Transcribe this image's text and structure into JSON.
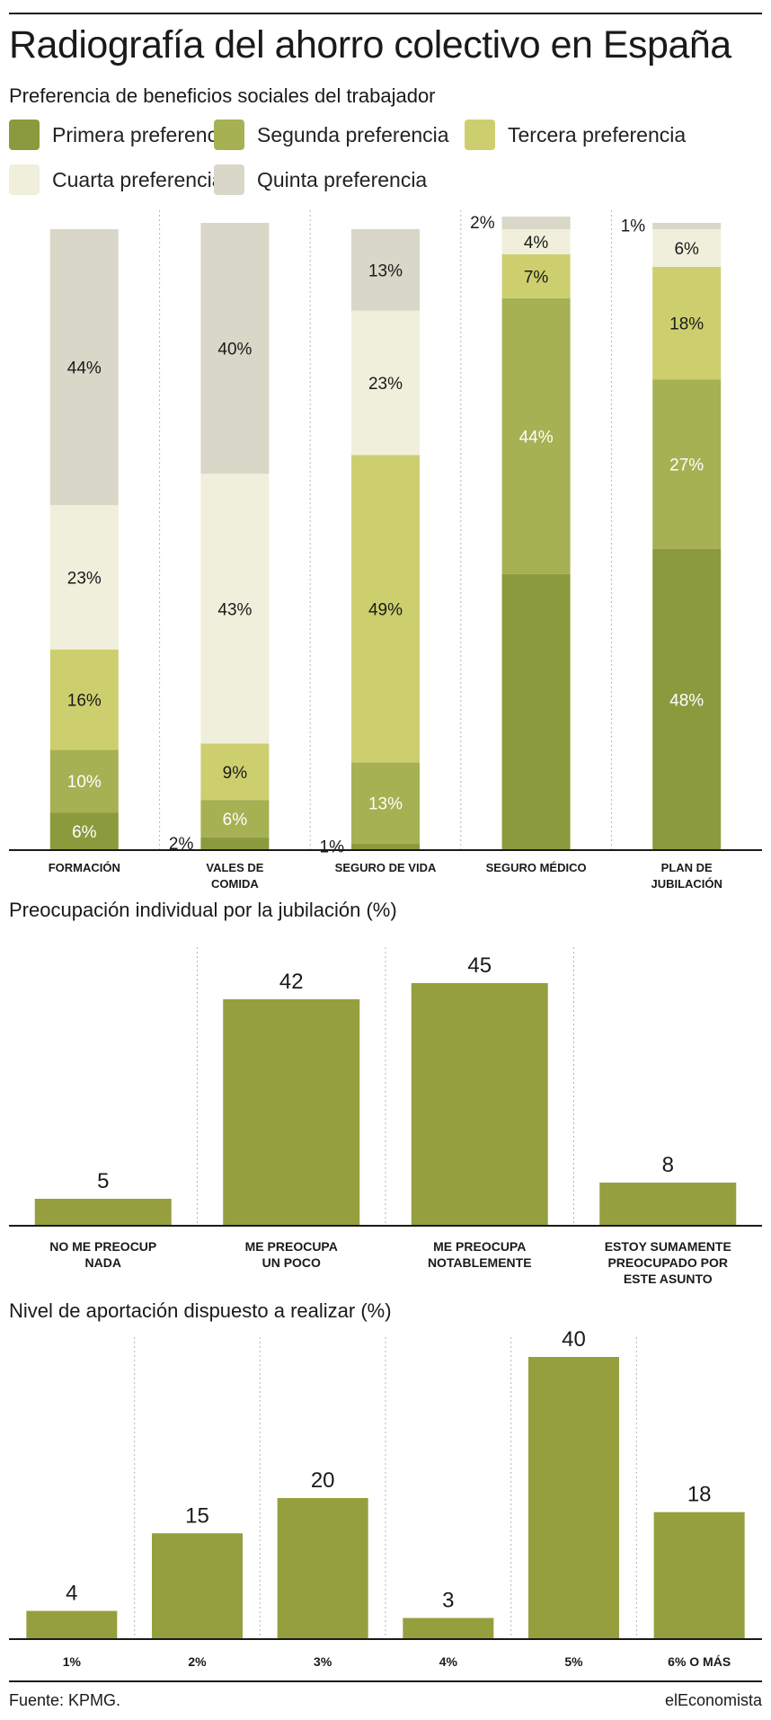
{
  "title": "Radiografía del ahorro colectivo en España",
  "source": "Fuente: KPMG.",
  "brand": "elEconomista",
  "colors": {
    "primera": "#8c9a3e",
    "segunda": "#a5b152",
    "tercera": "#cdcf6e",
    "cuarta": "#f0efdc",
    "quinta": "#d9d7c7",
    "bar": "#959f3e",
    "text": "#1a1a1a",
    "grid": "#b5b5b5"
  },
  "chart_data": [
    {
      "type": "bar",
      "stacked": true,
      "title": "Preferencia de beneficios sociales del trabajador",
      "categories": [
        "FORMACIÓN",
        "VALES DE COMIDA",
        "SEGURO DE VIDA",
        "SEGURO MÉDICO",
        "PLAN DE JUBILACIÓN"
      ],
      "ylim": [
        0,
        100
      ],
      "legend": "top",
      "grid": "vertical-dotted",
      "series": [
        {
          "name": "Primera preferencia",
          "color": "#8c9a3e",
          "values": [
            6,
            2,
            1,
            44,
            48
          ],
          "labels": [
            "6%",
            "2%",
            "1%",
            "",
            "48%"
          ]
        },
        {
          "name": "Segunda preferencia",
          "color": "#a5b152",
          "values": [
            10,
            6,
            13,
            44,
            27
          ],
          "labels": [
            "10%",
            "6%",
            "13%",
            "44%",
            "27%"
          ]
        },
        {
          "name": "Tercera preferencia",
          "color": "#cdcf6e",
          "values": [
            16,
            9,
            49,
            7,
            18
          ],
          "labels": [
            "16%",
            "9%",
            "49%",
            "7%",
            "18%"
          ]
        },
        {
          "name": "Cuarta preferencia",
          "color": "#f0efdc",
          "values": [
            23,
            43,
            23,
            4,
            6
          ],
          "labels": [
            "23%",
            "43%",
            "23%",
            "4%",
            "6%"
          ]
        },
        {
          "name": "Quinta preferencia",
          "color": "#d9d7c7",
          "values": [
            44,
            40,
            13,
            2,
            1
          ],
          "labels": [
            "44%",
            "40%",
            "13%",
            "2%",
            "1%"
          ]
        }
      ]
    },
    {
      "type": "bar",
      "title": "Preocupación individual por la jubilación (%)",
      "categories": [
        "NO ME PREOCUP NADA",
        "ME PREOCUPA UN POCO",
        "ME PREOCUPA NOTABLEMENTE",
        "ESTOY SUMAMENTE PREOCUPADO POR ESTE ASUNTO"
      ],
      "category_lines": [
        [
          "NO ME PREOCUP",
          "NADA"
        ],
        [
          "ME PREOCUPA",
          "UN POCO"
        ],
        [
          "ME PREOCUPA",
          "NOTABLEMENTE"
        ],
        [
          "ESTOY SUMAMENTE",
          "PREOCUPADO POR",
          "ESTE ASUNTO"
        ]
      ],
      "values": [
        5,
        42,
        45,
        8
      ],
      "ylim": [
        0,
        48
      ],
      "grid": "vertical-dotted"
    },
    {
      "type": "bar",
      "title": "Nivel de aportación dispuesto a realizar (%)",
      "categories": [
        "1%",
        "2%",
        "3%",
        "4%",
        "5%",
        "6% O MÁS"
      ],
      "values": [
        4,
        15,
        20,
        3,
        40,
        18
      ],
      "ylim": [
        0,
        40
      ],
      "grid": "vertical-dotted"
    }
  ]
}
